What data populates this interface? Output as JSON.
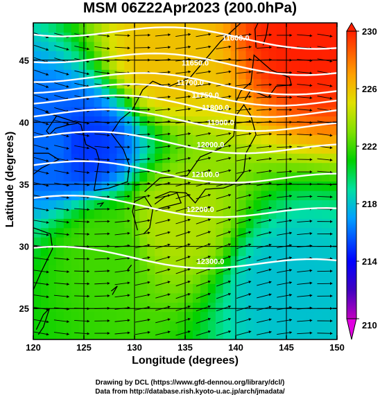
{
  "title": "MSM 06Z22Apr2023 (200.0hPa)",
  "xaxis": {
    "label": "Longitude (degrees)",
    "ticks": [
      "120",
      "125",
      "130",
      "135",
      "140",
      "145",
      "150"
    ]
  },
  "yaxis": {
    "label": "Latitude  (degrees)",
    "ticks": [
      "25",
      "30",
      "35",
      "40",
      "45"
    ]
  },
  "colorbar": {
    "ticks": [
      "210",
      "214",
      "218",
      "222",
      "226",
      "230"
    ],
    "min": 210,
    "max": 230
  },
  "contour_labels": [
    "11600.0",
    "11650.0",
    "11700.0",
    "11750.0",
    "11800.0",
    "11900.0",
    "12000.0",
    "12100.0",
    "12200.0",
    "12300.0"
  ],
  "credits": {
    "line1": "Drawing by DCL (https://www.gfd-dennou.org/library/dcl/)",
    "line2": "Data from http://database.rish.kyoto-u.ac.jp/arch/jmadata/"
  },
  "chart_data": {
    "type": "heatmap",
    "title": "MSM 06Z22Apr2023 (200.0hPa)",
    "xlabel": "Longitude (degrees)",
    "ylabel": "Latitude  (degrees)",
    "xlim": [
      120,
      150
    ],
    "ylim": [
      22.5,
      48
    ],
    "field": "temperature",
    "colorbar_range": [
      210,
      230
    ],
    "contours": [
      {
        "value": 11600.0,
        "label_lon": 140,
        "label_lat": 46.8
      },
      {
        "value": 11650.0,
        "label_lon": 136,
        "label_lat": 44.8
      },
      {
        "value": 11700.0,
        "label_lon": 135.5,
        "label_lat": 43.2
      },
      {
        "value": 11750.0,
        "label_lon": 137,
        "label_lat": 42.2
      },
      {
        "value": 11800.0,
        "label_lon": 138,
        "label_lat": 41.2
      },
      {
        "value": 11900.0,
        "label_lon": 138.5,
        "label_lat": 40.0
      },
      {
        "value": 12000.0,
        "label_lon": 137.5,
        "label_lat": 38.2
      },
      {
        "value": 12100.0,
        "label_lon": 137,
        "label_lat": 35.8
      },
      {
        "value": 12200.0,
        "label_lon": 136.5,
        "label_lat": 33.0
      },
      {
        "value": 12300.0,
        "label_lon": 137.5,
        "label_lat": 28.8
      }
    ],
    "temperature_samples": [
      {
        "lon": 122,
        "lat": 38,
        "value": 216
      },
      {
        "lon": 125,
        "lat": 38,
        "value": 215
      },
      {
        "lon": 147,
        "lat": 47,
        "value": 230
      },
      {
        "lon": 133,
        "lat": 45,
        "value": 226
      },
      {
        "lon": 134,
        "lat": 32,
        "value": 224
      },
      {
        "lon": 145,
        "lat": 27,
        "value": 218
      },
      {
        "lon": 127,
        "lat": 30,
        "value": 222
      }
    ]
  }
}
